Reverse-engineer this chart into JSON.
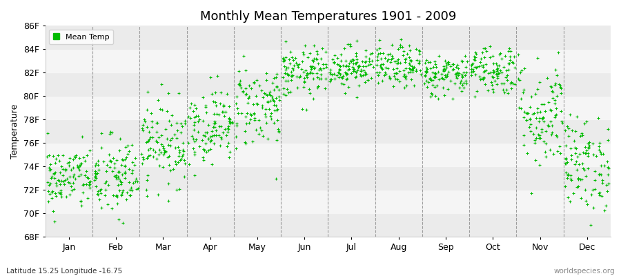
{
  "title": "Monthly Mean Temperatures 1901 - 2009",
  "ylabel": "Temperature",
  "xlabel_months": [
    "Jan",
    "Feb",
    "Mar",
    "Apr",
    "May",
    "Jun",
    "Jul",
    "Aug",
    "Sep",
    "Oct",
    "Nov",
    "Dec"
  ],
  "ytick_labels": [
    "68F",
    "70F",
    "72F",
    "74F",
    "76F",
    "78F",
    "80F",
    "82F",
    "84F",
    "86F"
  ],
  "ytick_values": [
    68,
    70,
    72,
    74,
    76,
    78,
    80,
    82,
    84,
    86
  ],
  "ylim": [
    68,
    86
  ],
  "dot_color": "#00BB00",
  "legend_label": "Mean Temp",
  "footer_left": "Latitude 15.25 Longitude -16.75",
  "footer_right": "worldspecies.org",
  "background_color": "#ffffff",
  "band_color_even": "#ebebeb",
  "band_color_odd": "#f5f5f5",
  "mean_temps_F": [
    73.0,
    73.0,
    76.0,
    77.5,
    79.2,
    82.0,
    82.5,
    82.5,
    81.8,
    82.3,
    78.5,
    74.2
  ],
  "std_temps_F": [
    1.4,
    1.8,
    1.8,
    1.6,
    1.8,
    1.1,
    0.9,
    0.9,
    0.9,
    1.1,
    2.4,
    2.0
  ],
  "n_years": 109,
  "seed": 42
}
